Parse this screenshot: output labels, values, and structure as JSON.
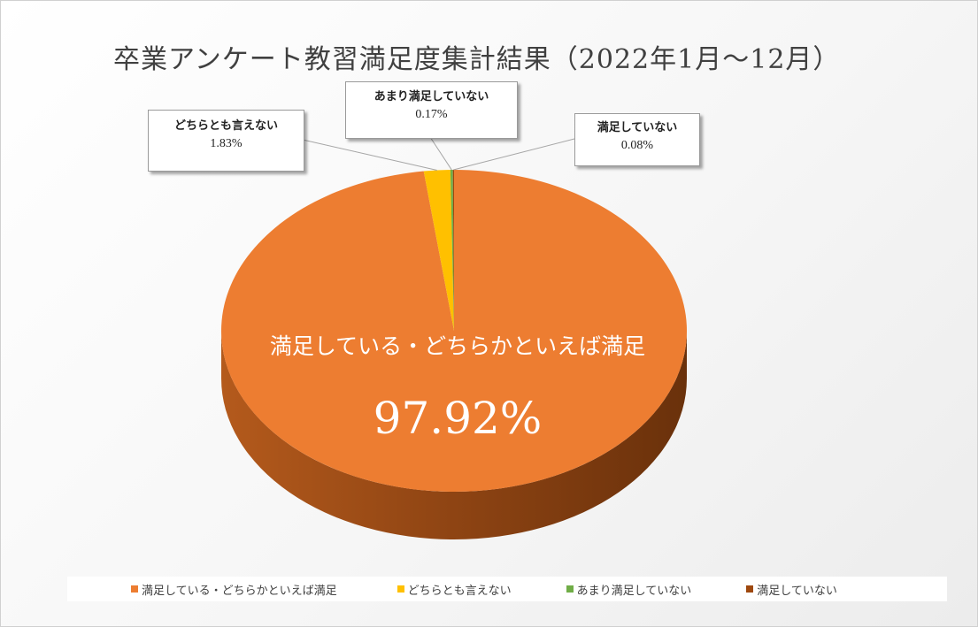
{
  "chart_data": {
    "type": "pie",
    "title": "卒業アンケート教習満足度集計結果（2022年1月～12月）",
    "categories": [
      "満足している・どちらかといえば満足",
      "どちらとも言えない",
      "あまり満足していない",
      "満足していない"
    ],
    "values": [
      97.92,
      1.83,
      0.17,
      0.08
    ],
    "value_labels": [
      "97.92%",
      "1.83%",
      "0.17%",
      "0.08%"
    ],
    "colors": [
      "#ed7d31",
      "#ffc000",
      "#70ad47",
      "#9e480e"
    ],
    "legend_position": "bottom",
    "style": "3d"
  }
}
